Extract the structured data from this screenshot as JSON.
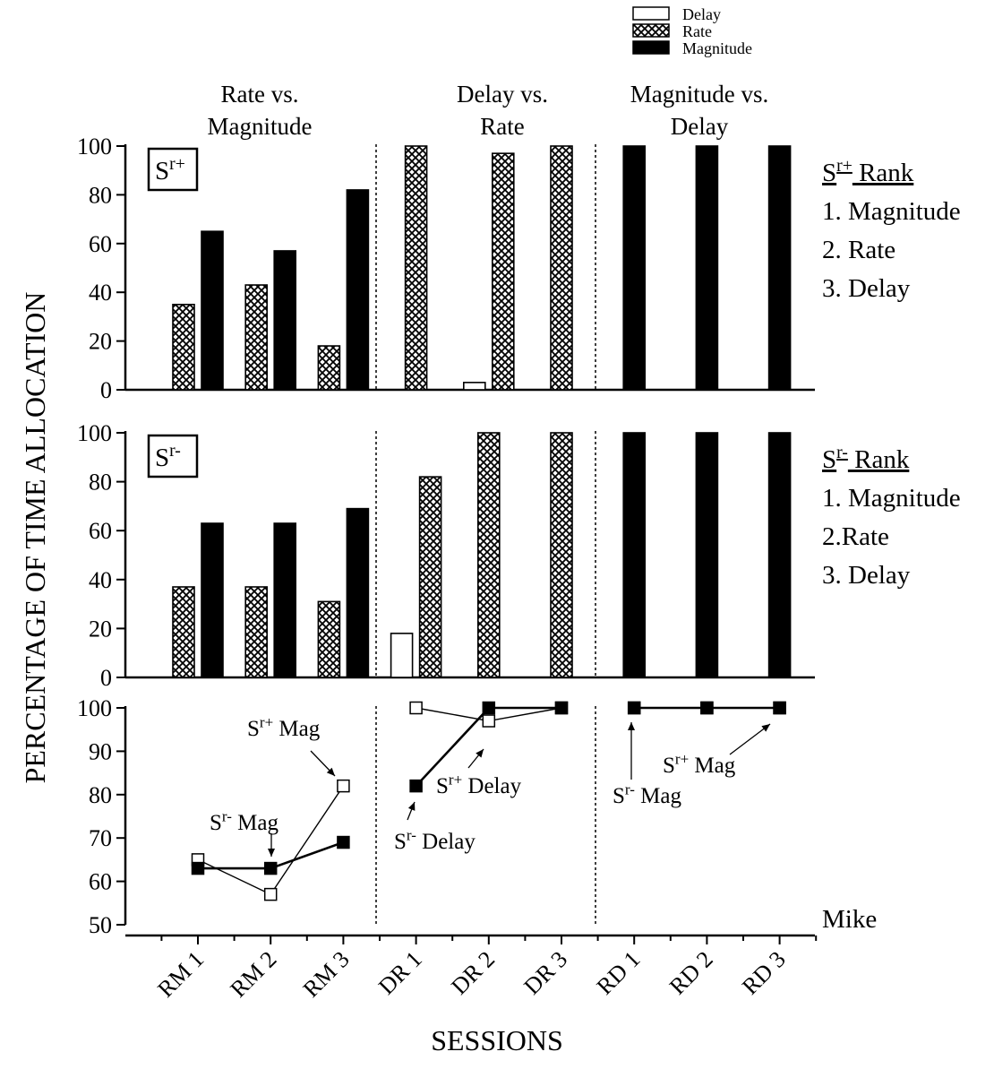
{
  "chart_data": {
    "type": "bar",
    "participant": "Mike",
    "xlabel": "SESSIONS",
    "ylabel": "PERCENTAGE OF TIME ALLOCATION",
    "categories": [
      "RM 1",
      "RM 2",
      "RM 3",
      "DR 1",
      "DR 2",
      "DR 3",
      "RD 1",
      "RD 2",
      "RD 3"
    ],
    "legend": [
      {
        "name": "Delay",
        "pattern": "open"
      },
      {
        "name": "Rate",
        "pattern": "crosshatch"
      },
      {
        "name": "Magnitude",
        "pattern": "filled"
      }
    ],
    "conditions": [
      {
        "title_line1": "Rate vs.",
        "title_line2": "Magnitude"
      },
      {
        "title_line1": "Delay vs.",
        "title_line2": "Rate"
      },
      {
        "title_line1": "Magnitude vs.",
        "title_line2": "Delay"
      }
    ],
    "panels": [
      {
        "box_label_main": "S",
        "box_label_sup": "r+",
        "ylim": [
          0,
          100
        ],
        "yticks": [
          "0",
          "20",
          "40",
          "60",
          "80",
          "100"
        ],
        "rank_title_main": "S",
        "rank_title_sup": "r+",
        "rank_title_rest": " Rank",
        "rank_items": [
          "1. Magnitude",
          "2. Rate",
          "3. Delay"
        ],
        "bars": [
          {
            "cat": 0,
            "series": "Rate",
            "value": 35
          },
          {
            "cat": 0,
            "series": "Magnitude",
            "value": 65
          },
          {
            "cat": 1,
            "series": "Rate",
            "value": 43
          },
          {
            "cat": 1,
            "series": "Magnitude",
            "value": 57
          },
          {
            "cat": 2,
            "series": "Rate",
            "value": 18
          },
          {
            "cat": 2,
            "series": "Magnitude",
            "value": 82
          },
          {
            "cat": 3,
            "series": "Rate",
            "value": 100
          },
          {
            "cat": 4,
            "series": "Delay",
            "value": 3
          },
          {
            "cat": 4,
            "series": "Rate",
            "value": 97
          },
          {
            "cat": 5,
            "series": "Rate",
            "value": 100
          },
          {
            "cat": 6,
            "series": "Magnitude",
            "value": 100
          },
          {
            "cat": 7,
            "series": "Magnitude",
            "value": 100
          },
          {
            "cat": 8,
            "series": "Magnitude",
            "value": 100
          }
        ]
      },
      {
        "box_label_main": "S",
        "box_label_sup": "r-",
        "ylim": [
          0,
          100
        ],
        "yticks": [
          "0",
          "20",
          "40",
          "60",
          "80",
          "100"
        ],
        "rank_title_main": "S",
        "rank_title_sup": "r-",
        "rank_title_rest": " Rank",
        "rank_items": [
          "1. Magnitude",
          "2.Rate",
          "3. Delay"
        ],
        "bars": [
          {
            "cat": 0,
            "series": "Rate",
            "value": 37
          },
          {
            "cat": 0,
            "series": "Magnitude",
            "value": 63
          },
          {
            "cat": 1,
            "series": "Rate",
            "value": 37
          },
          {
            "cat": 1,
            "series": "Magnitude",
            "value": 63
          },
          {
            "cat": 2,
            "series": "Rate",
            "value": 31
          },
          {
            "cat": 2,
            "series": "Magnitude",
            "value": 69
          },
          {
            "cat": 3,
            "series": "Delay",
            "value": 18
          },
          {
            "cat": 3,
            "series": "Rate",
            "value": 82
          },
          {
            "cat": 4,
            "series": "Rate",
            "value": 100
          },
          {
            "cat": 5,
            "series": "Rate",
            "value": 100
          },
          {
            "cat": 6,
            "series": "Magnitude",
            "value": 100
          },
          {
            "cat": 7,
            "series": "Magnitude",
            "value": 100
          },
          {
            "cat": 8,
            "series": "Magnitude",
            "value": 100
          }
        ]
      }
    ],
    "line_panel": {
      "ylim": [
        50,
        100
      ],
      "yticks": [
        "50",
        "60",
        "70",
        "80",
        "90",
        "100"
      ],
      "series": [
        {
          "marker": "open",
          "segments": [
            [
              0,
              1,
              2
            ],
            [
              3,
              4,
              5
            ],
            [
              6,
              7,
              8
            ]
          ],
          "values": [
            65,
            57,
            82,
            100,
            97,
            100,
            100,
            100,
            100
          ]
        },
        {
          "marker": "filled",
          "segments": [
            [
              0,
              1,
              2
            ],
            [
              3,
              4,
              5
            ],
            [
              6,
              7,
              8
            ]
          ],
          "values": [
            63,
            63,
            69,
            82,
            100,
            100,
            100,
            100,
            100
          ]
        }
      ],
      "annotations": [
        {
          "main": "S",
          "sup": "r+",
          "rest": " Mag"
        },
        {
          "main": "S",
          "sup": "r-",
          "rest": " Mag"
        },
        {
          "main": "S",
          "sup": "r+",
          "rest": " Delay"
        },
        {
          "main": "S",
          "sup": "r-",
          "rest": " Delay"
        },
        {
          "main": "S",
          "sup": "r-",
          "rest": " Mag"
        },
        {
          "main": "S",
          "sup": "r+",
          "rest": " Mag"
        }
      ]
    }
  }
}
